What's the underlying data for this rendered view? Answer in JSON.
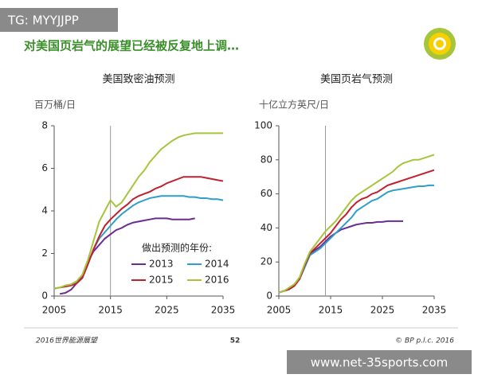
{
  "header": {
    "tag": "TG: MYYJJPP",
    "title": "对美国页岩气的展望已经被反复地上调…"
  },
  "footer": {
    "left": "2016世界能源展望",
    "page": "52",
    "right": "© BP p.l.c. 2016"
  },
  "watermark": "www.net-35sports.com",
  "chart_data": [
    {
      "type": "line",
      "title": "美国致密油预测",
      "y_label": "百万桶/日",
      "x": [
        2005,
        2006,
        2007,
        2008,
        2009,
        2010,
        2011,
        2012,
        2013,
        2014,
        2015,
        2016,
        2017,
        2018,
        2019,
        2020,
        2021,
        2022,
        2023,
        2024,
        2025,
        2026,
        2027,
        2028,
        2029,
        2030,
        2031,
        2032,
        2033,
        2034,
        2035
      ],
      "xlim": [
        2005,
        2035
      ],
      "xticks": [
        2005,
        2015,
        2025,
        2035
      ],
      "ylim": [
        0,
        8
      ],
      "yticks": [
        0,
        2,
        4,
        6,
        8
      ],
      "x_marker": 2015,
      "legend_title": "做出预测的年份:",
      "series": [
        {
          "name": "2013",
          "color": "#6a2c91",
          "values": [
            null,
            0.1,
            0.15,
            0.3,
            0.6,
            1.0,
            1.6,
            2.1,
            2.4,
            2.7,
            2.9,
            3.1,
            3.2,
            3.35,
            3.45,
            3.5,
            3.55,
            3.6,
            3.65,
            3.65,
            3.65,
            3.6,
            3.6,
            3.6,
            3.6,
            3.65,
            null,
            null,
            null,
            null,
            null
          ]
        },
        {
          "name": "2014",
          "color": "#2e9fc9",
          "values": [
            0.35,
            0.4,
            0.45,
            0.5,
            0.6,
            0.85,
            1.5,
            2.2,
            2.7,
            3.0,
            3.3,
            3.6,
            3.85,
            4.05,
            4.25,
            4.4,
            4.5,
            4.6,
            4.65,
            4.7,
            4.7,
            4.7,
            4.7,
            4.7,
            4.65,
            4.65,
            4.6,
            4.6,
            4.55,
            4.55,
            4.5
          ]
        },
        {
          "name": "2015",
          "color": "#c0202f",
          "values": [
            0.35,
            0.4,
            0.45,
            0.5,
            0.6,
            0.85,
            1.5,
            2.2,
            2.8,
            3.3,
            3.6,
            3.85,
            4.1,
            4.3,
            4.55,
            4.7,
            4.8,
            4.9,
            5.05,
            5.15,
            5.3,
            5.4,
            5.5,
            5.6,
            5.6,
            5.6,
            5.6,
            5.55,
            5.5,
            5.45,
            5.4
          ]
        },
        {
          "name": "2016",
          "color": "#a6c53a",
          "values": [
            0.35,
            0.4,
            0.5,
            0.55,
            0.7,
            1.0,
            1.7,
            2.6,
            3.5,
            4.0,
            4.5,
            4.2,
            4.4,
            4.8,
            5.2,
            5.6,
            5.9,
            6.3,
            6.6,
            6.9,
            7.1,
            7.3,
            7.45,
            7.55,
            7.6,
            7.65,
            7.65,
            7.65,
            7.65,
            7.65,
            7.65
          ]
        }
      ]
    },
    {
      "type": "line",
      "title": "美国页岩气预测",
      "y_label": "十亿立方英尺/日",
      "x": [
        2005,
        2006,
        2007,
        2008,
        2009,
        2010,
        2011,
        2012,
        2013,
        2014,
        2015,
        2016,
        2017,
        2018,
        2019,
        2020,
        2021,
        2022,
        2023,
        2024,
        2025,
        2026,
        2027,
        2028,
        2029,
        2030,
        2031,
        2032,
        2033,
        2034,
        2035
      ],
      "xlim": [
        2005,
        2035
      ],
      "xticks": [
        2005,
        2015,
        2025,
        2035
      ],
      "ylim": [
        0,
        100
      ],
      "yticks": [
        0,
        20,
        40,
        60,
        80,
        100
      ],
      "x_marker": 2014,
      "series": [
        {
          "name": "2013",
          "color": "#6a2c91",
          "values": [
            2,
            3,
            4,
            6,
            10,
            17,
            24,
            27,
            29,
            32,
            35,
            37,
            39,
            40,
            41,
            42,
            42.5,
            43,
            43,
            43.5,
            43.5,
            44,
            44,
            44,
            44,
            null,
            null,
            null,
            null,
            null,
            null
          ]
        },
        {
          "name": "2014",
          "color": "#2e9fc9",
          "values": [
            2,
            3,
            4,
            6,
            10,
            17,
            24,
            26,
            28,
            31,
            34,
            37,
            40,
            43,
            46,
            50,
            52,
            54,
            56,
            57,
            59,
            61,
            62,
            62.5,
            63,
            63.5,
            64,
            64.5,
            64.5,
            65,
            65
          ]
        },
        {
          "name": "2015",
          "color": "#c0202f",
          "values": [
            2,
            3,
            4,
            6,
            10,
            18,
            25,
            28,
            31,
            34,
            37,
            41,
            45,
            48,
            52,
            55,
            57,
            58,
            60,
            61,
            63,
            65,
            66,
            67,
            68,
            69,
            70,
            71,
            72,
            73,
            74
          ]
        },
        {
          "name": "2016",
          "color": "#a6c53a",
          "values": [
            2,
            3,
            5,
            7,
            11,
            19,
            26,
            30,
            34,
            38,
            41,
            44,
            48,
            52,
            56,
            59,
            61,
            63,
            65,
            67,
            69,
            71,
            73,
            76,
            78,
            79,
            80,
            80,
            81,
            82,
            83
          ]
        }
      ]
    }
  ]
}
